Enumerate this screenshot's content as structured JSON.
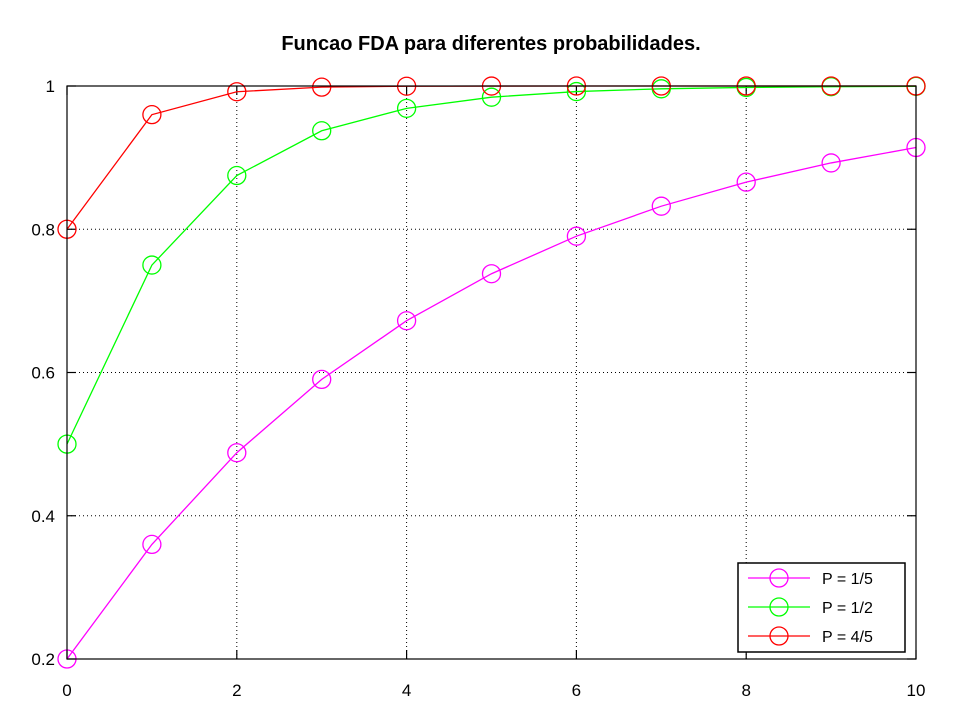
{
  "chart_data": {
    "type": "line",
    "title": "Funcao FDA para diferentes probabilidades.",
    "xlabel": "",
    "ylabel": "",
    "xlim": [
      0,
      10
    ],
    "ylim": [
      0.2,
      1
    ],
    "x_ticks": [
      "0",
      "2",
      "4",
      "6",
      "8",
      "10"
    ],
    "y_ticks": [
      "0.2",
      "0.4",
      "0.6",
      "0.8",
      "1"
    ],
    "grid": true,
    "legend_position": "bottom-right",
    "marker": "circle",
    "x": [
      0,
      1,
      2,
      3,
      4,
      5,
      6,
      7,
      8,
      9,
      10
    ],
    "series": [
      {
        "name": "P = 1/5",
        "color": "#ff00ff",
        "values": [
          0.2,
          0.36,
          0.488,
          0.5904,
          0.6723,
          0.7379,
          0.7903,
          0.8322,
          0.8658,
          0.8926,
          0.9141
        ]
      },
      {
        "name": "P = 1/2",
        "color": "#00ff00",
        "values": [
          0.5,
          0.75,
          0.875,
          0.9375,
          0.9688,
          0.9844,
          0.9922,
          0.9961,
          0.998,
          0.999,
          0.9995
        ]
      },
      {
        "name": "P = 4/5",
        "color": "#ff0000",
        "values": [
          0.8,
          0.96,
          0.992,
          0.9984,
          0.9997,
          0.9999,
          1.0,
          1.0,
          1.0,
          1.0,
          1.0
        ]
      }
    ]
  }
}
